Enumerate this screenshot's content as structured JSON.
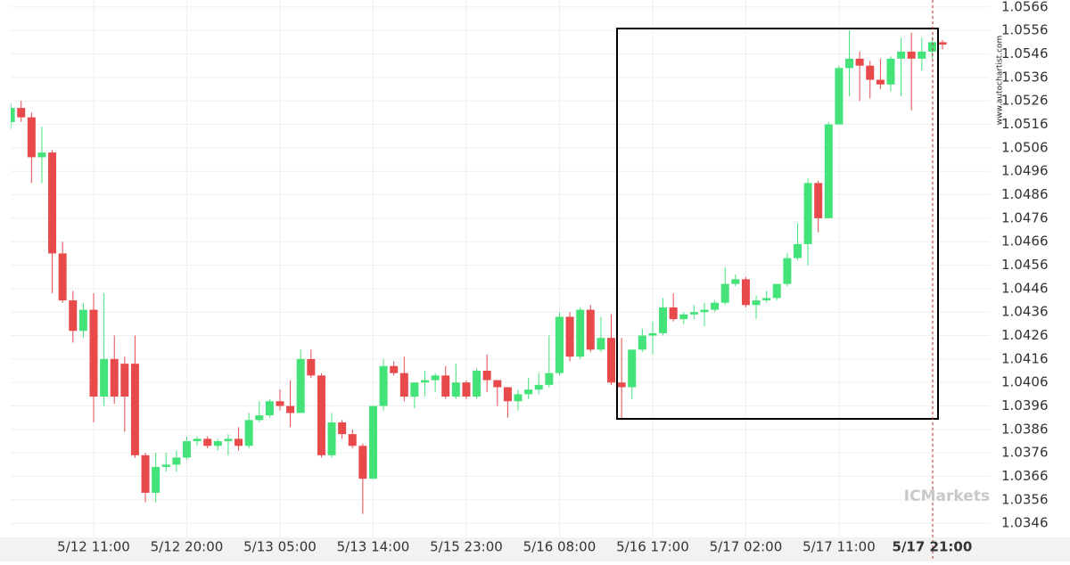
{
  "chart_data": {
    "type": "candlestick",
    "watermark": "www.autochartist.com",
    "logo": "ICMarkets",
    "up_color": "#44e37a",
    "down_color": "#e8494b",
    "ylim": [
      1.034,
      1.0569
    ],
    "yticks": [
      1.0346,
      1.0356,
      1.0366,
      1.0376,
      1.0386,
      1.0396,
      1.0406,
      1.0416,
      1.0426,
      1.0436,
      1.0446,
      1.0456,
      1.0466,
      1.0476,
      1.0486,
      1.0496,
      1.0506,
      1.0516,
      1.0526,
      1.0536,
      1.0546,
      1.0556,
      1.0566
    ],
    "grid": true,
    "categories": [
      null,
      null,
      null,
      null,
      null,
      null,
      null,
      null,
      "5/12 11:00",
      null,
      null,
      null,
      null,
      null,
      null,
      null,
      null,
      "5/12 20:00",
      null,
      null,
      null,
      null,
      null,
      null,
      null,
      null,
      "5/13 05:00",
      null,
      null,
      null,
      null,
      null,
      null,
      null,
      null,
      "5/13 14:00",
      null,
      null,
      null,
      null,
      null,
      null,
      null,
      null,
      "5/15 23:00",
      null,
      null,
      null,
      null,
      null,
      null,
      null,
      null,
      "5/16 08:00",
      null,
      null,
      null,
      null,
      null,
      null,
      null,
      null,
      "5/16 17:00",
      null,
      null,
      null,
      null,
      null,
      null,
      null,
      null,
      "5/17 02:00",
      null,
      null,
      null,
      null,
      null,
      null,
      null,
      null,
      "5/17 11:00",
      null,
      null,
      null,
      null,
      null,
      null,
      null,
      null,
      "5/17 21:00",
      null
    ],
    "open": [
      1.0517,
      1.0523,
      1.0519,
      1.0502,
      1.0504,
      1.0461,
      1.0441,
      1.0428,
      1.0437,
      1.04,
      1.0416,
      1.0414,
      1.0414,
      1.0375,
      1.0359,
      1.037,
      1.0371,
      1.0374,
      1.0381,
      1.0382,
      1.0379,
      1.0381,
      1.0382,
      1.0379,
      1.039,
      1.0392,
      1.0398,
      1.0396,
      1.0393,
      1.0416,
      1.0409,
      1.0375,
      1.0389,
      1.0384,
      1.0379,
      1.0365,
      1.0396,
      1.0413,
      1.041,
      1.04,
      1.0406,
      1.0407,
      1.0409,
      1.04,
      1.0406,
      1.04,
      1.0411,
      1.0407,
      1.0404,
      1.0398,
      1.0401,
      1.0403,
      1.0405,
      1.041,
      1.0434,
      1.0417,
      1.0437,
      1.042,
      1.0425,
      1.0406,
      1.0404,
      1.042,
      1.0426,
      1.0427,
      1.0438,
      1.0433,
      1.0435,
      1.0436,
      1.0437,
      1.044,
      1.0448,
      1.045,
      1.0439,
      1.0441,
      1.0442,
      1.0448,
      1.0459,
      1.0465,
      1.0491,
      1.0476,
      1.0516,
      1.054,
      1.0544,
      1.0541,
      1.0535,
      1.0533,
      1.0544,
      1.0547,
      1.0544,
      1.0547,
      1.0551
    ],
    "high": [
      1.0525,
      1.0526,
      1.0521,
      1.0515,
      1.0505,
      1.0466,
      1.0445,
      1.044,
      1.0444,
      1.0444,
      1.0426,
      1.0417,
      1.0426,
      1.0376,
      1.0376,
      1.0376,
      1.0377,
      1.0383,
      1.0383,
      1.0383,
      1.0382,
      1.0384,
      1.0387,
      1.0393,
      1.0398,
      1.0399,
      1.0403,
      1.0407,
      1.042,
      1.042,
      1.041,
      1.0393,
      1.039,
      1.0386,
      1.038,
      1.0396,
      1.0416,
      1.0415,
      1.0417,
      1.0406,
      1.0411,
      1.041,
      1.0413,
      1.0414,
      1.0407,
      1.0412,
      1.0418,
      1.0407,
      1.0404,
      1.0403,
      1.0408,
      1.041,
      1.0426,
      1.0436,
      1.0436,
      1.0438,
      1.0439,
      1.0434,
      1.0435,
      1.0425,
      1.042,
      1.0429,
      1.0432,
      1.0442,
      1.0444,
      1.0436,
      1.0439,
      1.044,
      1.0441,
      1.0455,
      1.0452,
      1.0451,
      1.0443,
      1.0445,
      1.0448,
      1.0461,
      1.0474,
      1.0493,
      1.0492,
      1.0517,
      1.0541,
      1.0556,
      1.0547,
      1.0543,
      1.0544,
      1.0545,
      1.0553,
      1.0555,
      1.0553,
      1.0553,
      1.0552
    ],
    "low": [
      1.0514,
      1.0517,
      1.0491,
      1.0491,
      1.0444,
      1.044,
      1.0423,
      1.0425,
      1.0389,
      1.0396,
      1.0397,
      1.0385,
      1.0374,
      1.0355,
      1.0355,
      1.0368,
      1.0368,
      1.0373,
      1.0379,
      1.0378,
      1.0377,
      1.0375,
      1.0377,
      1.0378,
      1.0389,
      1.0391,
      1.0394,
      1.0387,
      1.0393,
      1.0408,
      1.0374,
      1.0374,
      1.0382,
      1.0378,
      1.035,
      1.0365,
      1.0394,
      1.0409,
      1.0398,
      1.0395,
      1.04,
      1.0402,
      1.0399,
      1.0399,
      1.0399,
      1.0399,
      1.0402,
      1.0396,
      1.0391,
      1.0394,
      1.0399,
      1.0401,
      1.0404,
      1.0409,
      1.0415,
      1.0416,
      1.0419,
      1.0419,
      1.0405,
      1.039,
      1.0399,
      1.0419,
      1.0418,
      1.0426,
      1.0432,
      1.0431,
      1.0433,
      1.043,
      1.0436,
      1.0439,
      1.0447,
      1.0438,
      1.0433,
      1.044,
      1.0441,
      1.0447,
      1.0458,
      1.0456,
      1.047,
      1.0476,
      1.0516,
      1.0528,
      1.0526,
      1.0527,
      1.0531,
      1.053,
      1.0528,
      1.0522,
      1.0539,
      1.0544,
      1.0548
    ],
    "close": [
      1.0523,
      1.0519,
      1.0502,
      1.0504,
      1.0461,
      1.0441,
      1.0428,
      1.0437,
      1.04,
      1.0416,
      1.04,
      1.04,
      1.0375,
      1.0359,
      1.037,
      1.0371,
      1.0374,
      1.0381,
      1.0382,
      1.0379,
      1.0381,
      1.0382,
      1.0379,
      1.039,
      1.0392,
      1.0398,
      1.0396,
      1.0393,
      1.0416,
      1.0409,
      1.0375,
      1.0389,
      1.0384,
      1.0379,
      1.0365,
      1.0396,
      1.0413,
      1.041,
      1.04,
      1.0406,
      1.0407,
      1.0409,
      1.04,
      1.0406,
      1.04,
      1.0411,
      1.0407,
      1.0404,
      1.0398,
      1.0401,
      1.0403,
      1.0405,
      1.041,
      1.0434,
      1.0417,
      1.0437,
      1.042,
      1.0425,
      1.0406,
      1.0404,
      1.042,
      1.0426,
      1.0427,
      1.0438,
      1.0433,
      1.0435,
      1.0436,
      1.0437,
      1.044,
      1.0448,
      1.045,
      1.0439,
      1.0441,
      1.0442,
      1.0448,
      1.0459,
      1.0465,
      1.0491,
      1.0476,
      1.0516,
      1.054,
      1.0544,
      1.0541,
      1.0535,
      1.0533,
      1.0544,
      1.0547,
      1.0544,
      1.0547,
      1.0551,
      1.055
    ]
  }
}
